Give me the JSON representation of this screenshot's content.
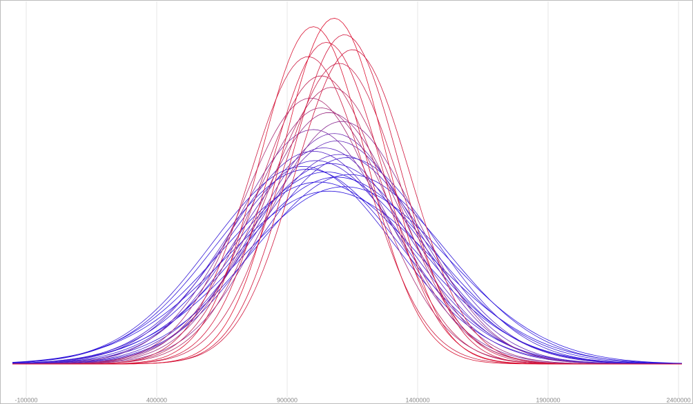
{
  "chart_data": {
    "type": "density",
    "xlim": [
      -153000,
      2413000
    ],
    "xticks": [
      -100000,
      400000,
      900000,
      1400000,
      1900000,
      2400000
    ],
    "ylim": [
      0,
      2.06e-06
    ],
    "grid": true,
    "series": [
      {
        "mean": 1060000,
        "sd": 400000,
        "color": "#2810dc"
      },
      {
        "mean": 1120000,
        "sd": 390000,
        "color": "#2610e0"
      },
      {
        "mean": 1020000,
        "sd": 380000,
        "color": "#2810de"
      },
      {
        "mean": 1090000,
        "sd": 370000,
        "color": "#2a12dc"
      },
      {
        "mean": 1140000,
        "sd": 365000,
        "color": "#2e16d8"
      },
      {
        "mean": 1050000,
        "sd": 360000,
        "color": "#2c14da"
      },
      {
        "mean": 980000,
        "sd": 355000,
        "color": "#3014d8"
      },
      {
        "mean": 960000,
        "sd": 350000,
        "color": "#3418d6"
      },
      {
        "mean": 1070000,
        "sd": 345000,
        "color": "#3818d4"
      },
      {
        "mean": 1010000,
        "sd": 340000,
        "color": "#421cd0"
      },
      {
        "mean": 1130000,
        "sd": 335000,
        "color": "#3c1cd2"
      },
      {
        "mean": 1100000,
        "sd": 330000,
        "color": "#4c20c8"
      },
      {
        "mean": 1000000,
        "sd": 325000,
        "color": "#5020c6"
      },
      {
        "mean": 1040000,
        "sd": 320000,
        "color": "#5a24c0"
      },
      {
        "mean": 1090000,
        "sd": 310000,
        "color": "#6024b8"
      },
      {
        "mean": 1080000,
        "sd": 300000,
        "color": "#6a28b0"
      },
      {
        "mean": 1000000,
        "sd": 295000,
        "color": "#7828a0"
      },
      {
        "mean": 1110000,
        "sd": 285000,
        "color": "#882890"
      },
      {
        "mean": 1060000,
        "sd": 275000,
        "color": "#982880"
      },
      {
        "mean": 1030000,
        "sd": 270000,
        "color": "#a02a78"
      },
      {
        "mean": 990000,
        "sd": 260000,
        "color": "#a82870"
      },
      {
        "mean": 1070000,
        "sd": 250000,
        "color": "#b42460"
      },
      {
        "mean": 1030000,
        "sd": 240000,
        "color": "#c02050"
      },
      {
        "mean": 1100000,
        "sd": 230000,
        "color": "#c81c48"
      },
      {
        "mean": 980000,
        "sd": 225000,
        "color": "#cc1840"
      },
      {
        "mean": 1150000,
        "sd": 220000,
        "color": "#d0143c"
      },
      {
        "mean": 1050000,
        "sd": 215000,
        "color": "#d4143a"
      },
      {
        "mean": 1120000,
        "sd": 210000,
        "color": "#d01038"
      },
      {
        "mean": 1000000,
        "sd": 205000,
        "color": "#d81030"
      },
      {
        "mean": 1080000,
        "sd": 200000,
        "color": "#dc0c2c"
      }
    ]
  }
}
